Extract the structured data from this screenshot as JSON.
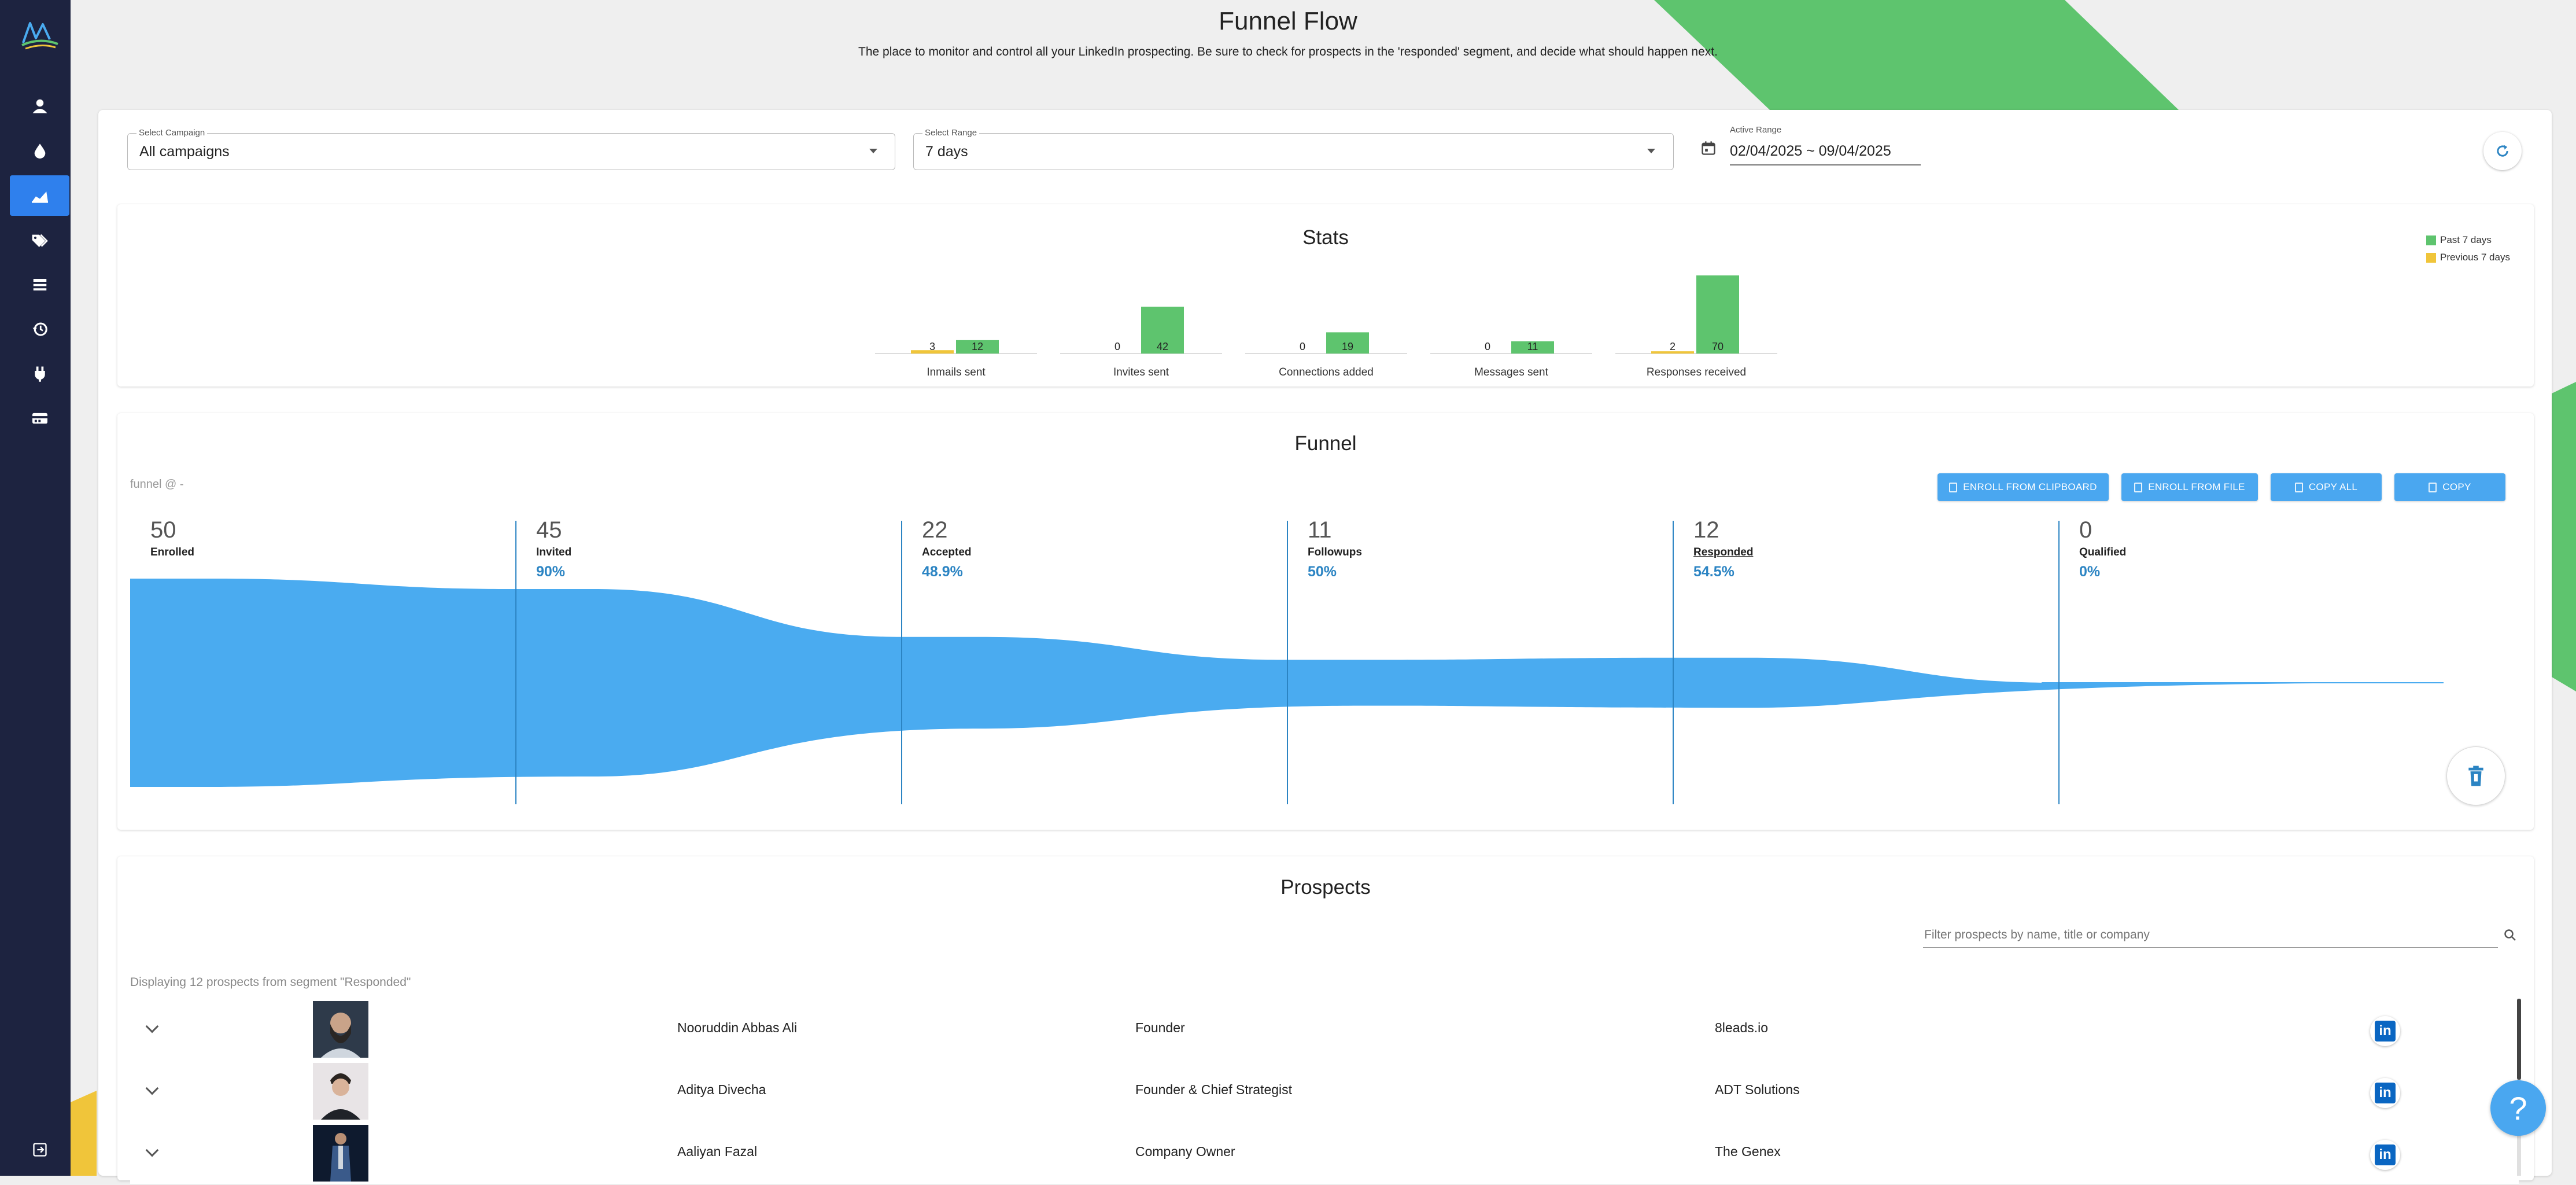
{
  "header": {
    "title": "Funnel Flow",
    "subtitle": "The place to monitor and control all your LinkedIn prospecting. Be sure to check for prospects in the 'responded' segment, and decide what should happen next."
  },
  "sidebar": {
    "items": [
      {
        "icon": "person-icon"
      },
      {
        "icon": "drop-icon"
      },
      {
        "icon": "chart-icon",
        "active": true
      },
      {
        "icon": "tags-icon"
      },
      {
        "icon": "list-icon"
      },
      {
        "icon": "history-icon"
      },
      {
        "icon": "plug-icon"
      },
      {
        "icon": "card-icon"
      }
    ],
    "logout_icon": "logout-icon"
  },
  "filters": {
    "campaign_label": "Select Campaign",
    "campaign_value": "All campaigns",
    "range_label": "Select Range",
    "range_value": "7 days",
    "active_range_label": "Active Range",
    "active_range_value": "02/04/2025 ~ 09/04/2025"
  },
  "stats": {
    "title": "Stats",
    "legend": [
      {
        "name": "Past 7 days",
        "color": "#5ec46e"
      },
      {
        "name": "Previous 7 days",
        "color": "#f0c53a"
      }
    ]
  },
  "chart_data": {
    "type": "bar",
    "title": "Stats",
    "categories": [
      "Inmails sent",
      "Invites sent",
      "Connections added",
      "Messages sent",
      "Responses received"
    ],
    "series": [
      {
        "name": "Previous 7 days",
        "color": "#f0c53a",
        "values": [
          3,
          0,
          0,
          0,
          2
        ]
      },
      {
        "name": "Past 7 days",
        "color": "#5ec46e",
        "values": [
          12,
          42,
          19,
          11,
          70
        ]
      }
    ],
    "ylim": [
      0,
      70
    ],
    "legend_position": "top-right"
  },
  "funnel": {
    "title": "Funnel",
    "caption": "funnel @ -",
    "buttons": [
      "ENROLL FROM CLIPBOARD",
      "ENROLL FROM FILE",
      "COPY ALL",
      "COPY"
    ],
    "stages": [
      {
        "count": "50",
        "name": "Enrolled",
        "pct": "",
        "value": 50
      },
      {
        "count": "45",
        "name": "Invited",
        "pct": "90%",
        "value": 45
      },
      {
        "count": "22",
        "name": "Accepted",
        "pct": "48.9%",
        "value": 22
      },
      {
        "count": "11",
        "name": "Followups",
        "pct": "50%",
        "value": 11
      },
      {
        "count": "12",
        "name": "Responded",
        "pct": "54.5%",
        "value": 12
      },
      {
        "count": "0",
        "name": "Qualified",
        "pct": "0%",
        "value": 0
      }
    ],
    "fill_color": "#4aabf0"
  },
  "prospects": {
    "title": "Prospects",
    "filter_placeholder": "Filter prospects by name, title or company",
    "caption": "Displaying 12 prospects from segment \"Responded\"",
    "rows": [
      {
        "name": "Nooruddin Abbas Ali",
        "title": "Founder",
        "company": "8leads.io"
      },
      {
        "name": "Aditya Divecha",
        "title": "Founder & Chief Strategist",
        "company": "ADT Solutions"
      },
      {
        "name": "Aaliyan Fazal",
        "title": "Company Owner",
        "company": "The Genex"
      }
    ]
  },
  "help_label": "?"
}
